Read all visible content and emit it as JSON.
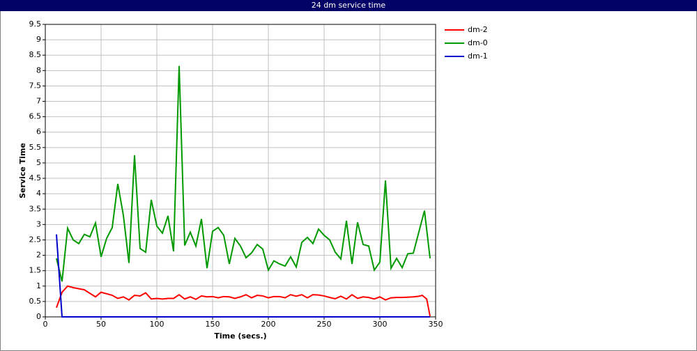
{
  "chart_data": {
    "type": "line",
    "title": "24 dm service time",
    "x_label": "Time (secs.)",
    "y_label": "Service Time",
    "xlim": [
      0,
      350
    ],
    "xticks": [
      0,
      50,
      100,
      150,
      200,
      250,
      300,
      350
    ],
    "ylim": [
      0,
      9.5
    ],
    "yticks": [
      0,
      0.5,
      1,
      1.5,
      2,
      2.5,
      3,
      3.5,
      4,
      4.5,
      5,
      5.5,
      6,
      6.5,
      7,
      7.5,
      8,
      8.5,
      9,
      9.5
    ],
    "grid": true,
    "legend": "right",
    "series": [
      {
        "name": "dm-2",
        "color": "#ff0000",
        "x": [
          10,
          15,
          20,
          25,
          35,
          45,
          50,
          55,
          60,
          65,
          70,
          75,
          80,
          85,
          90,
          95,
          100,
          105,
          110,
          115,
          120,
          125,
          130,
          135,
          140,
          145,
          150,
          155,
          160,
          165,
          170,
          175,
          180,
          185,
          190,
          195,
          200,
          205,
          210,
          215,
          220,
          225,
          230,
          235,
          240,
          245,
          250,
          255,
          260,
          265,
          270,
          275,
          280,
          285,
          290,
          295,
          300,
          305,
          310,
          315,
          320,
          325,
          330,
          335,
          338,
          342,
          345
        ],
        "values": [
          0.3,
          0.8,
          1.0,
          0.95,
          0.88,
          0.65,
          0.8,
          0.75,
          0.7,
          0.6,
          0.65,
          0.55,
          0.7,
          0.68,
          0.78,
          0.58,
          0.6,
          0.58,
          0.6,
          0.6,
          0.72,
          0.58,
          0.65,
          0.57,
          0.68,
          0.65,
          0.66,
          0.62,
          0.66,
          0.65,
          0.6,
          0.65,
          0.72,
          0.62,
          0.7,
          0.68,
          0.62,
          0.66,
          0.66,
          0.62,
          0.72,
          0.67,
          0.72,
          0.62,
          0.72,
          0.71,
          0.68,
          0.63,
          0.59,
          0.67,
          0.58,
          0.72,
          0.6,
          0.65,
          0.63,
          0.58,
          0.65,
          0.55,
          0.62,
          0.63,
          0.63,
          0.64,
          0.65,
          0.67,
          0.7,
          0.58,
          0.02
        ]
      },
      {
        "name": "dm-0",
        "color": "#009900",
        "x": [
          10,
          15,
          20,
          25,
          30,
          35,
          40,
          45,
          50,
          55,
          60,
          65,
          70,
          75,
          80,
          85,
          90,
          95,
          100,
          105,
          110,
          115,
          120,
          125,
          130,
          135,
          140,
          145,
          150,
          155,
          160,
          165,
          170,
          175,
          180,
          185,
          190,
          195,
          200,
          205,
          210,
          215,
          220,
          225,
          230,
          235,
          240,
          245,
          250,
          255,
          260,
          265,
          270,
          275,
          280,
          285,
          290,
          295,
          300,
          305,
          310,
          315,
          320,
          325,
          330,
          340,
          345
        ],
        "values": [
          1.9,
          1.15,
          2.88,
          2.5,
          2.38,
          2.68,
          2.6,
          3.05,
          1.95,
          2.55,
          2.9,
          4.32,
          3.3,
          1.75,
          5.25,
          2.22,
          2.1,
          3.8,
          2.95,
          2.72,
          3.28,
          2.13,
          8.15,
          2.32,
          2.75,
          2.3,
          3.18,
          1.58,
          2.78,
          2.9,
          2.65,
          1.72,
          2.55,
          2.3,
          1.92,
          2.08,
          2.35,
          2.2,
          1.52,
          1.82,
          1.72,
          1.65,
          1.95,
          1.62,
          2.42,
          2.58,
          2.38,
          2.85,
          2.65,
          2.5,
          2.1,
          1.88,
          3.12,
          1.72,
          3.07,
          2.35,
          2.3,
          1.52,
          1.78,
          4.43,
          1.58,
          1.9,
          1.6,
          2.05,
          2.07,
          3.45,
          1.9
        ]
      },
      {
        "name": "dm-1",
        "color": "#0000cc",
        "x": [
          10,
          15,
          345
        ],
        "values": [
          2.68,
          0,
          0
        ]
      }
    ]
  }
}
